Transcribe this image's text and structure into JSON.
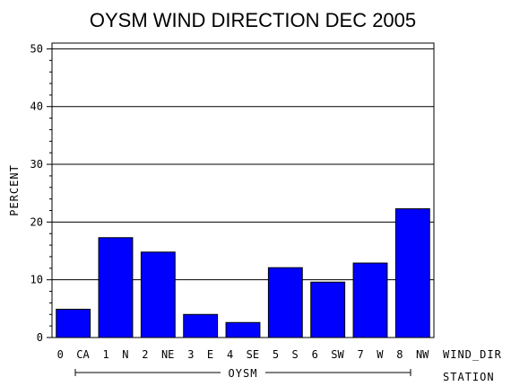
{
  "chart_data": {
    "type": "bar",
    "title": "OYSM WIND DIRECTION DEC 2005",
    "ylabel": "PERCENT",
    "xlabel": "WIND_DIR",
    "group_label_title": "STATION",
    "group_label": "OYSM",
    "categories": [
      "0 CA",
      "1 N",
      "2 NE",
      "3 E",
      "4 SE",
      "5 S",
      "6 SW",
      "7 W",
      "8 NW"
    ],
    "values": [
      4.9,
      17.3,
      14.8,
      4.0,
      2.6,
      12.1,
      9.6,
      12.9,
      22.3
    ],
    "ylim": [
      0,
      51
    ],
    "yticks": [
      0,
      10,
      20,
      30,
      40,
      50
    ],
    "grid": true,
    "bar_color": "#0000ff"
  }
}
